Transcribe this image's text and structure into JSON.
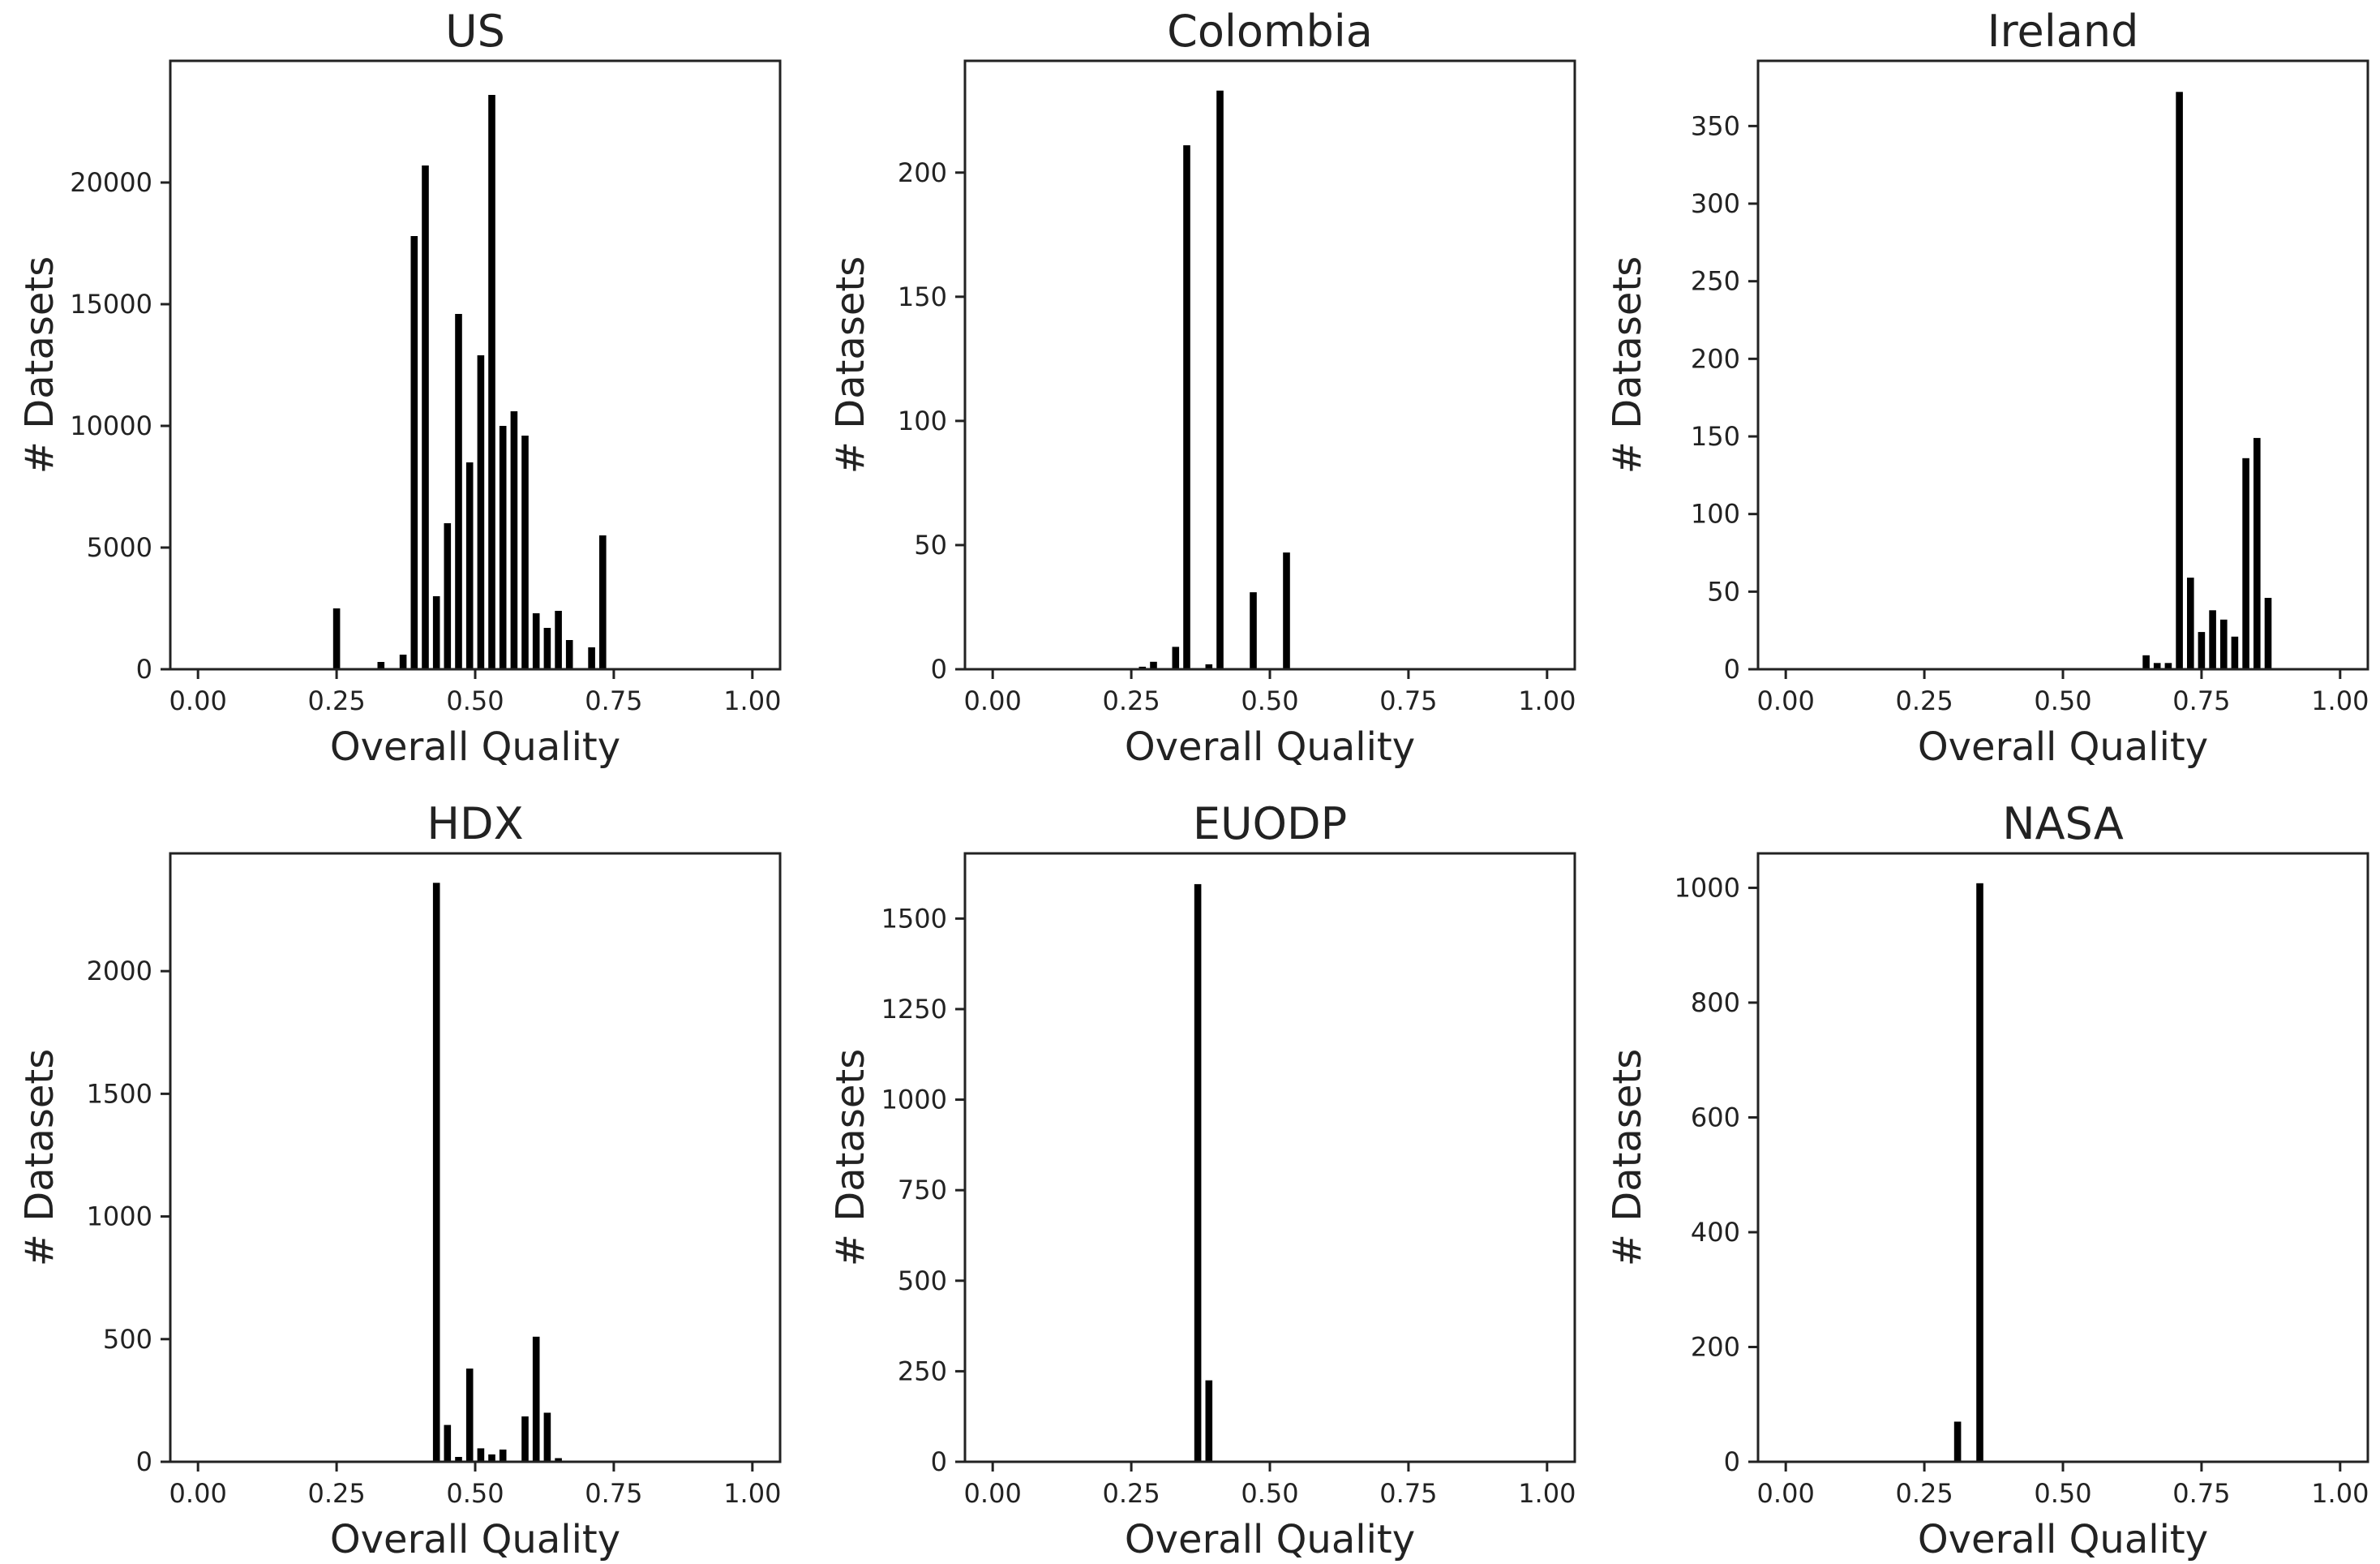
{
  "chart_data": [
    {
      "type": "bar",
      "title": "US",
      "xlabel": "Overall Quality",
      "ylabel": "# Datasets",
      "xlim": [
        -0.05,
        1.05
      ],
      "ylim": [
        0,
        25000
      ],
      "xticks": [
        0.0,
        0.25,
        0.5,
        0.75,
        1.0
      ],
      "xtick_labels": [
        "0.00",
        "0.25",
        "0.50",
        "0.75",
        "1.00"
      ],
      "yticks": [
        0,
        5000,
        10000,
        15000,
        20000
      ],
      "ytick_labels": [
        "0",
        "5000",
        "10000",
        "15000",
        "20000"
      ],
      "bin_width": 0.0167,
      "x": [
        0.25,
        0.33,
        0.37,
        0.39,
        0.41,
        0.43,
        0.45,
        0.47,
        0.49,
        0.51,
        0.53,
        0.55,
        0.57,
        0.59,
        0.61,
        0.63,
        0.65,
        0.67,
        0.71,
        0.73
      ],
      "values": [
        2500,
        300,
        600,
        17800,
        20700,
        3000,
        6000,
        14600,
        8500,
        12900,
        23600,
        10000,
        10600,
        9600,
        2300,
        1700,
        2400,
        1200,
        900,
        5500
      ]
    },
    {
      "type": "bar",
      "title": "Colombia",
      "xlabel": "Overall Quality",
      "ylabel": "# Datasets",
      "xlim": [
        -0.05,
        1.05
      ],
      "ylim": [
        0,
        245
      ],
      "xticks": [
        0.0,
        0.25,
        0.5,
        0.75,
        1.0
      ],
      "xtick_labels": [
        "0.00",
        "0.25",
        "0.50",
        "0.75",
        "1.00"
      ],
      "yticks": [
        0,
        50,
        100,
        150,
        200
      ],
      "ytick_labels": [
        "0",
        "50",
        "100",
        "150",
        "200"
      ],
      "bin_width": 0.0167,
      "x": [
        0.27,
        0.29,
        0.33,
        0.35,
        0.39,
        0.41,
        0.47,
        0.53
      ],
      "values": [
        1,
        3,
        9,
        211,
        2,
        233,
        31,
        47
      ]
    },
    {
      "type": "bar",
      "title": "Ireland",
      "xlabel": "Overall Quality",
      "ylabel": "# Datasets",
      "xlim": [
        -0.05,
        1.05
      ],
      "ylim": [
        0,
        392
      ],
      "xticks": [
        0.0,
        0.25,
        0.5,
        0.75,
        1.0
      ],
      "xtick_labels": [
        "0.00",
        "0.25",
        "0.50",
        "0.75",
        "1.00"
      ],
      "yticks": [
        0,
        50,
        100,
        150,
        200,
        250,
        300,
        350
      ],
      "ytick_labels": [
        "0",
        "50",
        "100",
        "150",
        "200",
        "250",
        "300",
        "350"
      ],
      "bin_width": 0.0167,
      "x": [
        0.65,
        0.67,
        0.69,
        0.71,
        0.73,
        0.75,
        0.77,
        0.79,
        0.81,
        0.83,
        0.85,
        0.87
      ],
      "values": [
        9,
        4,
        4,
        372,
        59,
        24,
        38,
        32,
        21,
        136,
        149,
        46
      ]
    },
    {
      "type": "bar",
      "title": "HDX",
      "xlabel": "Overall Quality",
      "ylabel": "# Datasets",
      "xlim": [
        -0.05,
        1.05
      ],
      "ylim": [
        0,
        2480
      ],
      "xticks": [
        0.0,
        0.25,
        0.5,
        0.75,
        1.0
      ],
      "xtick_labels": [
        "0.00",
        "0.25",
        "0.50",
        "0.75",
        "1.00"
      ],
      "yticks": [
        0,
        500,
        1000,
        1500,
        2000
      ],
      "ytick_labels": [
        "0",
        "500",
        "1000",
        "1500",
        "2000"
      ],
      "bin_width": 0.0167,
      "x": [
        0.43,
        0.45,
        0.47,
        0.49,
        0.51,
        0.53,
        0.55,
        0.59,
        0.61,
        0.63,
        0.65
      ],
      "values": [
        2360,
        150,
        20,
        380,
        55,
        30,
        50,
        185,
        510,
        200,
        15
      ]
    },
    {
      "type": "bar",
      "title": "EUODP",
      "xlabel": "Overall Quality",
      "ylabel": "# Datasets",
      "xlim": [
        -0.05,
        1.05
      ],
      "ylim": [
        0,
        1680
      ],
      "xticks": [
        0.0,
        0.25,
        0.5,
        0.75,
        1.0
      ],
      "xtick_labels": [
        "0.00",
        "0.25",
        "0.50",
        "0.75",
        "1.00"
      ],
      "yticks": [
        0,
        250,
        500,
        750,
        1000,
        1250,
        1500
      ],
      "ytick_labels": [
        "0",
        "250",
        "500",
        "750",
        "1000",
        "1250",
        "1500"
      ],
      "bin_width": 0.0167,
      "x": [
        0.37,
        0.39
      ],
      "values": [
        1595,
        225
      ]
    },
    {
      "type": "bar",
      "title": "NASA",
      "xlabel": "Overall Quality",
      "ylabel": "# Datasets",
      "xlim": [
        -0.05,
        1.05
      ],
      "ylim": [
        0,
        1060
      ],
      "xticks": [
        0.0,
        0.25,
        0.5,
        0.75,
        1.0
      ],
      "xtick_labels": [
        "0.00",
        "0.25",
        "0.50",
        "0.75",
        "1.00"
      ],
      "yticks": [
        0,
        200,
        400,
        600,
        800,
        1000
      ],
      "ytick_labels": [
        "0",
        "200",
        "400",
        "600",
        "800",
        "1000"
      ],
      "bin_width": 0.0167,
      "x": [
        0.31,
        0.35
      ],
      "values": [
        70,
        1008
      ]
    }
  ]
}
